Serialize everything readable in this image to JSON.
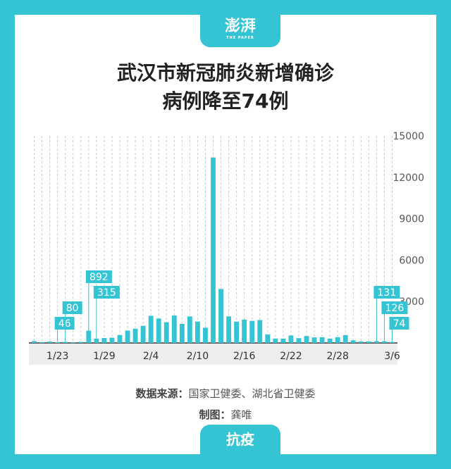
{
  "header": {
    "logo": "澎湃",
    "logo_sub": "THE PAPER"
  },
  "title": {
    "line1": "武汉市新冠肺炎新增确诊",
    "line2": "病例降至74例"
  },
  "footer": {
    "source_label": "数据来源：",
    "source_value": "国家卫健委、湖北省卫健委",
    "credit_label": "制图：",
    "credit_value": "龚唯"
  },
  "bottom_tab": "抗疫",
  "colors": {
    "accent": "#35c4d4",
    "bar": "#35c4d4",
    "text": "#222222"
  },
  "chart_data": {
    "type": "bar",
    "title": "武汉市新冠肺炎新增确诊病例降至74例",
    "xlabel": "",
    "ylabel": "",
    "ylim": [
      0,
      15000
    ],
    "yticks": [
      3000,
      6000,
      9000,
      12000,
      15000
    ],
    "y_axis_position": "right",
    "grid": true,
    "x_tick_labels": [
      "1/23",
      "1/29",
      "2/4",
      "2/10",
      "2/16",
      "2/22",
      "2/28",
      "3/6"
    ],
    "categories": [
      "1/20",
      "1/21",
      "1/22",
      "1/23",
      "1/24",
      "1/25",
      "1/26",
      "1/27",
      "1/28",
      "1/29",
      "1/30",
      "1/31",
      "2/1",
      "2/2",
      "2/3",
      "2/4",
      "2/5",
      "2/6",
      "2/7",
      "2/8",
      "2/9",
      "2/10",
      "2/11",
      "2/12",
      "2/13",
      "2/14",
      "2/15",
      "2/16",
      "2/17",
      "2/18",
      "2/19",
      "2/20",
      "2/21",
      "2/22",
      "2/23",
      "2/24",
      "2/25",
      "2/26",
      "2/27",
      "2/28",
      "2/29",
      "3/1",
      "3/2",
      "3/3",
      "3/4",
      "3/5",
      "3/6"
    ],
    "values": [
      136,
      60,
      105,
      46,
      80,
      46,
      80,
      892,
      315,
      356,
      378,
      576,
      894,
      1033,
      1242,
      1967,
      1766,
      1501,
      1985,
      1379,
      1920,
      1552,
      1104,
      13436,
      3910,
      1923,
      1548,
      1690,
      1600,
      1660,
      615,
      319,
      314,
      541,
      348,
      499,
      401,
      417,
      317,
      420,
      565,
      193,
      114,
      111,
      131,
      126,
      74
    ],
    "data_labels": [
      {
        "category": "1/23",
        "text": "46"
      },
      {
        "category": "1/24",
        "text": "80"
      },
      {
        "category": "1/27",
        "text": "892"
      },
      {
        "category": "1/28",
        "text": "315"
      },
      {
        "category": "3/4",
        "text": "131"
      },
      {
        "category": "3/5",
        "text": "126"
      },
      {
        "category": "3/6",
        "text": "74"
      }
    ]
  }
}
